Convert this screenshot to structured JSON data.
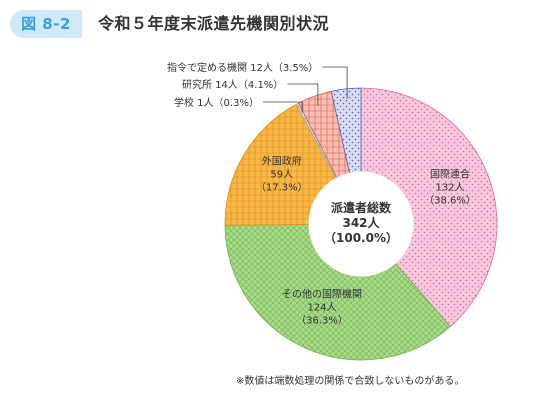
{
  "figure": {
    "badge": "図 8-2",
    "title": "令和５年度末派遣先機関別状況",
    "note": "※数値は端数処理の関係で合致しないものがある。"
  },
  "chart_data": {
    "type": "pie",
    "title": "令和５年度末派遣先機関別状況",
    "center_label": [
      "派遣者総数",
      "342人",
      "（100.0%）"
    ],
    "total": 342,
    "slices": [
      {
        "name": "国際連合",
        "count_label": "132人",
        "percent_label": "（38.6%）",
        "value": 132,
        "percent": 38.6,
        "color": "#f7c8de",
        "pattern_color": "#e06aa0"
      },
      {
        "name": "その他の国際機関",
        "count_label": "124人",
        "percent_label": "（36.3%）",
        "value": 124,
        "percent": 36.3,
        "color": "#a9d98a",
        "pattern_color": "#6fb24e"
      },
      {
        "name": "外国政府",
        "count_label": "59人",
        "percent_label": "（17.3%）",
        "value": 59,
        "percent": 17.3,
        "color": "#f8b84a",
        "pattern_color": "#e08a10"
      },
      {
        "name": "学校",
        "count_label": "1人",
        "percent_label": "（0.3%）",
        "value": 1,
        "percent": 0.3,
        "color": "#cfe3f0",
        "pattern_color": "#7aaed0"
      },
      {
        "name": "研究所",
        "count_label": "14人",
        "percent_label": "（4.1%）",
        "value": 14,
        "percent": 4.1,
        "color": "#f6c1b4",
        "pattern_color": "#e5574a"
      },
      {
        "name": "指令で定める機関",
        "count_label": "12人",
        "percent_label": "（3.5%）",
        "value": 12,
        "percent": 3.5,
        "color": "#d8dcf2",
        "pattern_color": "#5560b8"
      }
    ],
    "callout_labels": {
      "学校": "学校 1人（0.3%）",
      "研究所": "研究所 14人（4.1%）",
      "指令で定める機関": "指令で定める機関 12人（3.5%）"
    }
  }
}
